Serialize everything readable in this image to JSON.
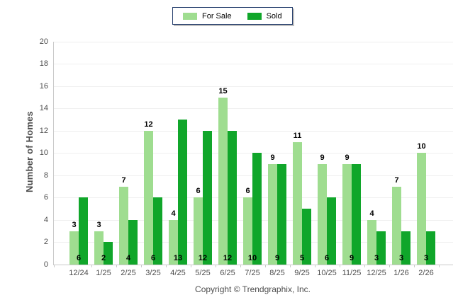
{
  "chart_data": {
    "type": "bar",
    "title": "",
    "categories": [
      "12/24",
      "1/25",
      "2/25",
      "3/25",
      "4/25",
      "5/25",
      "6/25",
      "7/25",
      "8/25",
      "9/25",
      "10/25",
      "11/25",
      "12/25",
      "1/26",
      "2/26"
    ],
    "series": [
      {
        "name": "For Sale",
        "color": "#9FDD90",
        "values": [
          3,
          3,
          7,
          12,
          4,
          6,
          15,
          6,
          9,
          11,
          9,
          9,
          4,
          7,
          10
        ],
        "value_label_position": "above-bar"
      },
      {
        "name": "Sold",
        "color": "#10A62A",
        "values": [
          6,
          2,
          4,
          6,
          13,
          12,
          12,
          10,
          9,
          5,
          6,
          9,
          3,
          3,
          3
        ],
        "value_label_position": "bar-base"
      }
    ],
    "xlabel": "",
    "ylabel": "Number of Homes",
    "ylim": [
      0,
      20
    ],
    "ytick_step": 2,
    "grid": true,
    "legend_position": "top-center"
  },
  "footer": {
    "copyright": "Copyright © Trendgraphix, Inc."
  }
}
